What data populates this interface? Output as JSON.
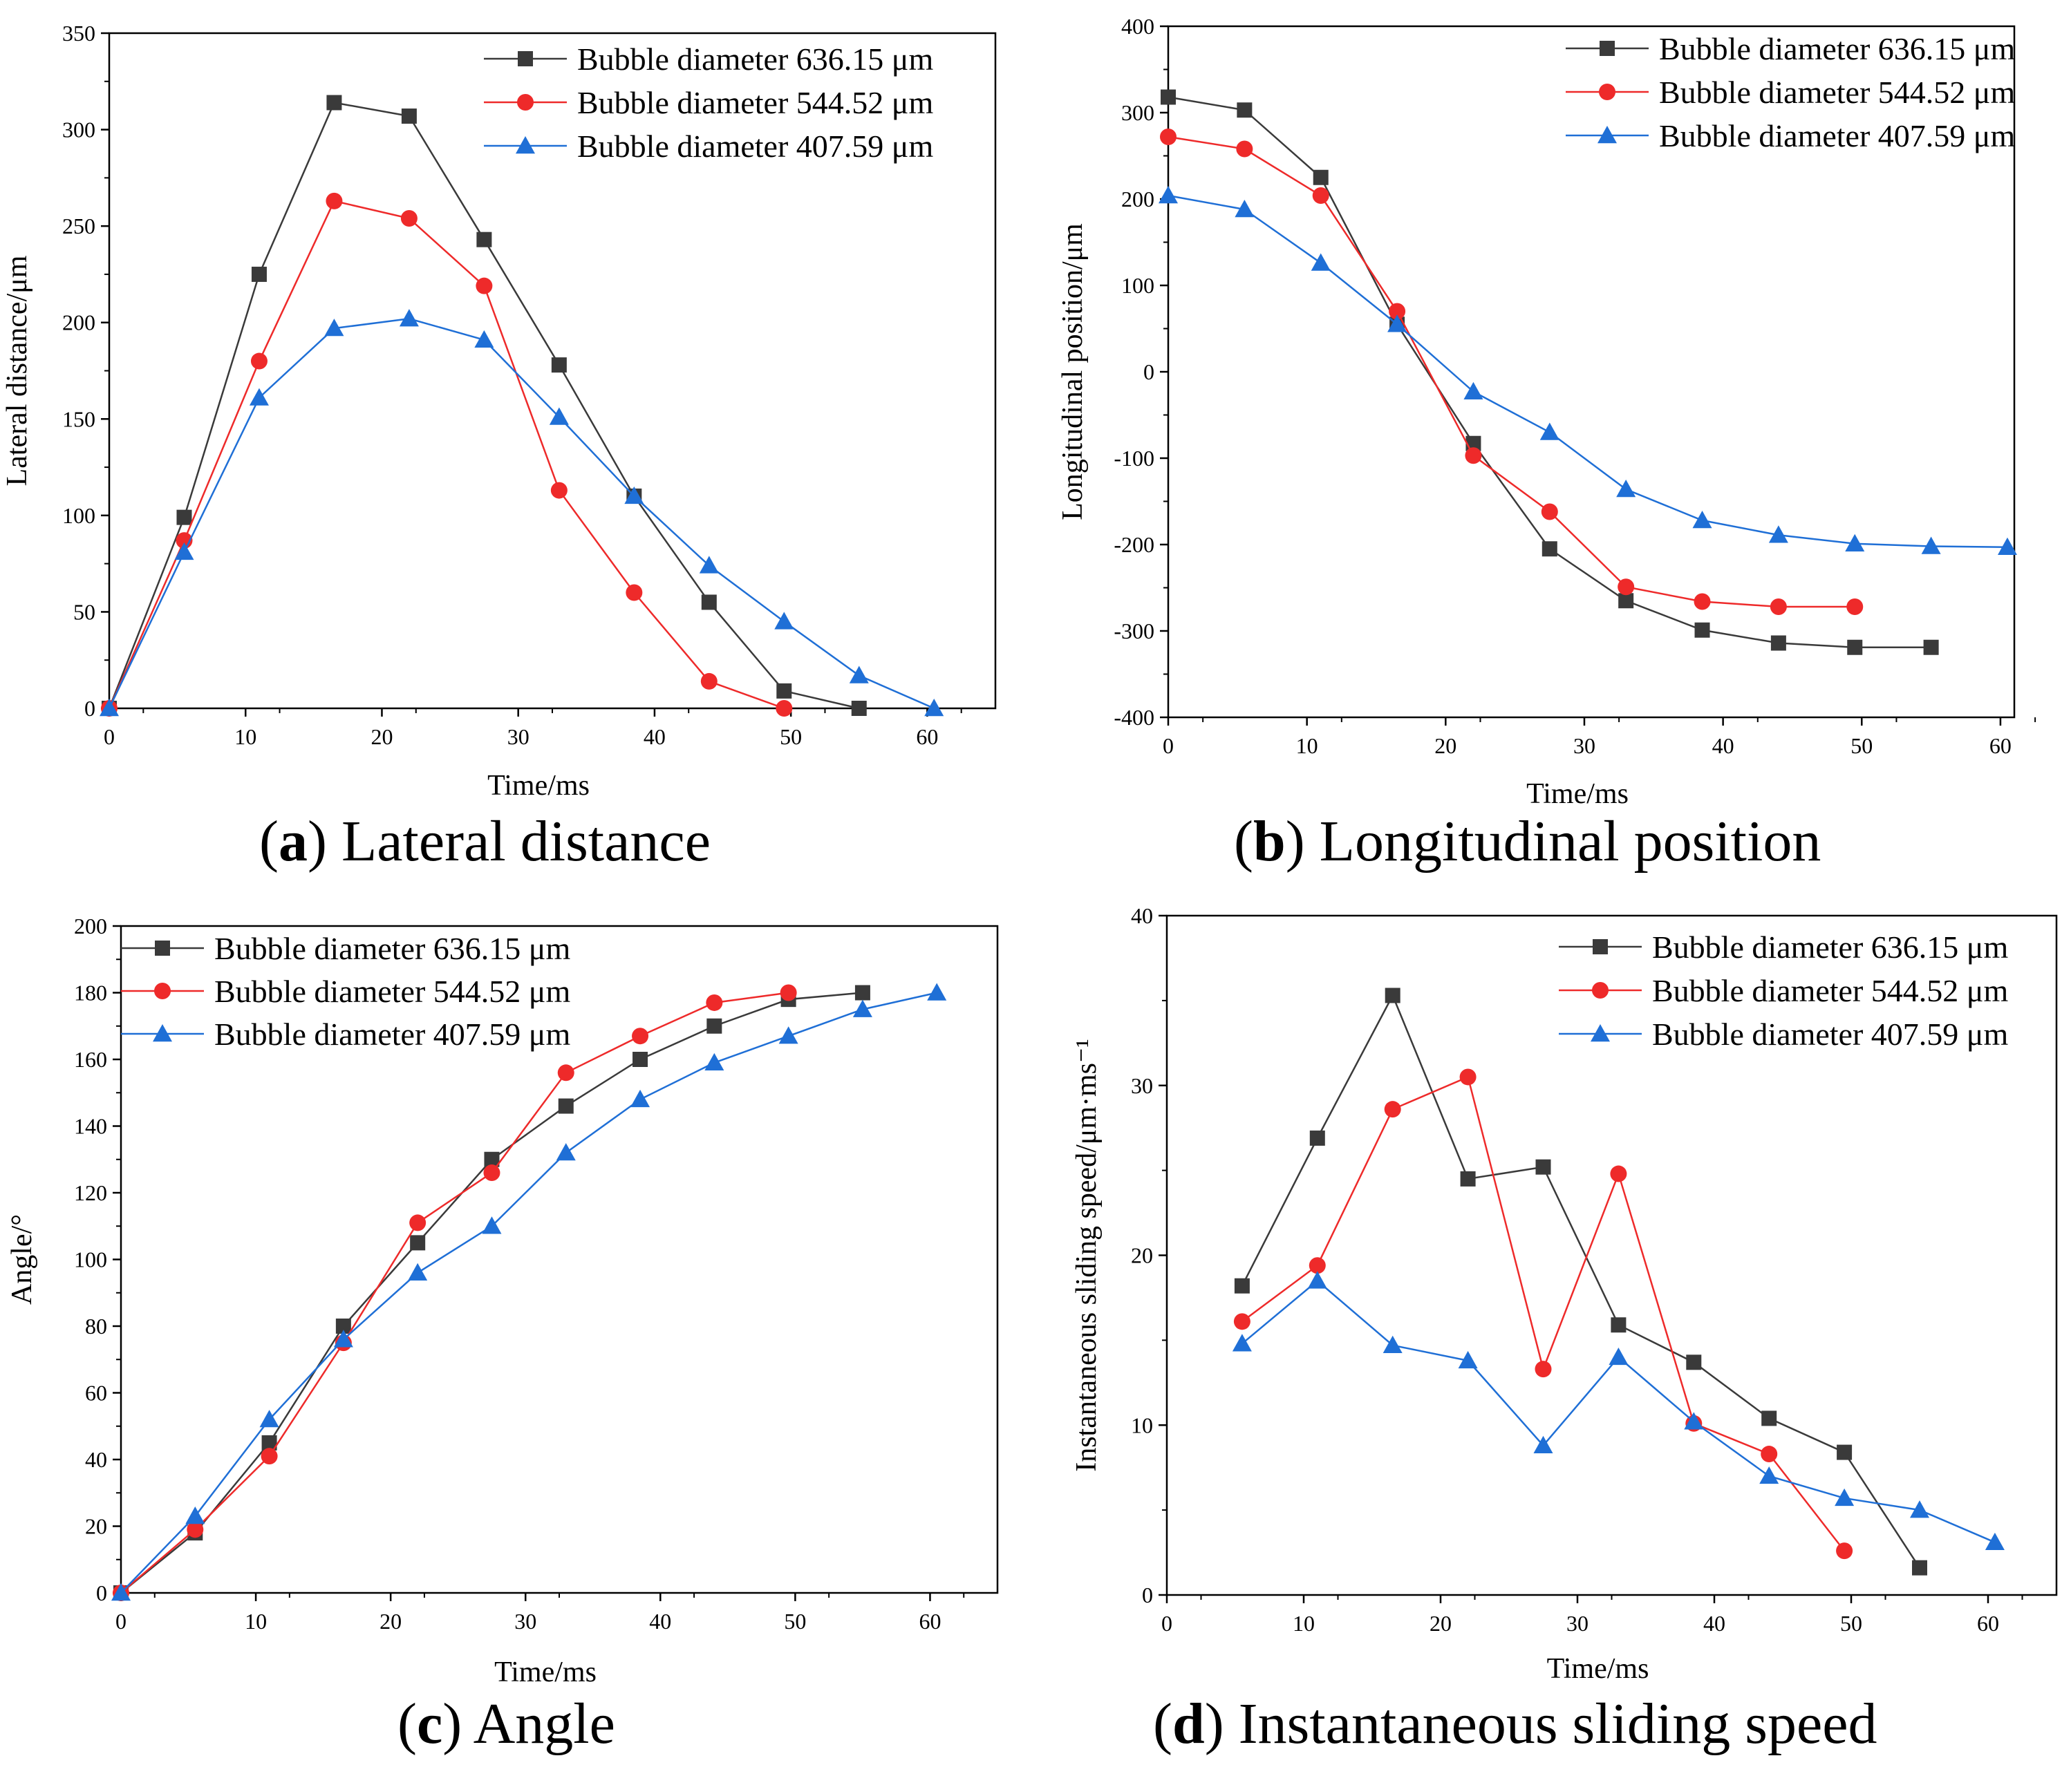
{
  "colors": {
    "s1": "#3a3a3a",
    "s2": "#ee2a2a",
    "s3": "#1f6fd6"
  },
  "series_names": [
    "Bubble diameter 636.15 μm",
    "Bubble diameter 544.52 μm",
    "Bubble diameter 407.59 μm"
  ],
  "xlabel": "Time/ms",
  "chart_data": [
    {
      "type": "line",
      "caption_letter": "a",
      "caption_text": "Lateral distance",
      "ylabel": "Lateral distance/μm",
      "xlabel": "Time/ms",
      "xlim": [
        0,
        65
      ],
      "ylim": [
        0,
        350
      ],
      "xticks": [
        0,
        10,
        20,
        30,
        40,
        50,
        60
      ],
      "yticks": [
        0,
        50,
        100,
        150,
        200,
        250,
        300,
        350
      ],
      "series": [
        {
          "name": "Bubble diameter 636.15 μm",
          "marker": "square",
          "x": [
            0,
            5.5,
            11,
            16.5,
            22,
            27.5,
            33,
            38.5,
            44,
            49.5,
            55
          ],
          "y": [
            0,
            99,
            225,
            314,
            307,
            243,
            178,
            110,
            55,
            9,
            0
          ]
        },
        {
          "name": "Bubble diameter 544.52 μm",
          "marker": "circle",
          "x": [
            0,
            5.5,
            11,
            16.5,
            22,
            27.5,
            33,
            38.5,
            44,
            49.5
          ],
          "y": [
            0,
            87,
            180,
            263,
            254,
            219,
            113,
            60,
            14,
            0
          ]
        },
        {
          "name": "Bubble diameter 407.59 μm",
          "marker": "triangle",
          "x": [
            0,
            5.5,
            11,
            16.5,
            22,
            27.5,
            33,
            38.5,
            44,
            49.5,
            55,
            60.5
          ],
          "y": [
            0,
            81,
            161,
            197,
            202,
            191,
            151,
            110,
            74,
            45,
            17,
            0
          ]
        }
      ]
    },
    {
      "type": "line",
      "caption_letter": "b",
      "caption_text": "Longitudinal position",
      "ylabel": "Longitudinal position/μm",
      "xlabel": "Time/ms",
      "xlim": [
        0,
        61
      ],
      "ylim": [
        -400,
        400
      ],
      "xticks": [
        0,
        10,
        20,
        30,
        40,
        50,
        60
      ],
      "yticks": [
        -400,
        -300,
        -200,
        -100,
        0,
        100,
        200,
        300,
        400
      ],
      "series": [
        {
          "name": "Bubble diameter 636.15 μm",
          "marker": "square",
          "x": [
            0,
            5.5,
            11,
            16.5,
            22,
            27.5,
            33,
            38.5,
            44,
            49.5,
            55
          ],
          "y": [
            318,
            303,
            225,
            55,
            -83,
            -205,
            -265,
            -299,
            -314,
            -319,
            -319
          ]
        },
        {
          "name": "Bubble diameter 544.52 μm",
          "marker": "circle",
          "x": [
            0,
            5.5,
            11,
            16.5,
            22,
            27.5,
            33,
            38.5,
            44,
            49.5
          ],
          "y": [
            272,
            258,
            204,
            70,
            -97,
            -162,
            -249,
            -266,
            -272,
            -272
          ]
        },
        {
          "name": "Bubble diameter 407.59 μm",
          "marker": "triangle",
          "x": [
            0,
            5.5,
            11,
            16.5,
            22,
            27.5,
            33,
            38.5,
            44,
            49.5,
            55,
            60.5
          ],
          "y": [
            204,
            188,
            126,
            55,
            -23,
            -70,
            -136,
            -172,
            -189,
            -199,
            -202,
            -203
          ]
        }
      ]
    },
    {
      "type": "line",
      "caption_letter": "c",
      "caption_text": "Angle",
      "ylabel": "Angle/°",
      "xlabel": "Time/ms",
      "xlim": [
        0,
        65
      ],
      "ylim": [
        0,
        200
      ],
      "xticks": [
        0,
        10,
        20,
        30,
        40,
        50,
        60
      ],
      "yticks": [
        0,
        20,
        40,
        60,
        80,
        100,
        120,
        140,
        160,
        180,
        200
      ],
      "series": [
        {
          "name": "Bubble diameter 636.15 μm",
          "marker": "square",
          "x": [
            0,
            5.5,
            11,
            16.5,
            22,
            27.5,
            33,
            38.5,
            44,
            49.5,
            55
          ],
          "y": [
            0,
            18,
            45,
            80,
            105,
            130,
            146,
            160,
            170,
            178,
            180
          ]
        },
        {
          "name": "Bubble diameter 544.52 μm",
          "marker": "circle",
          "x": [
            0,
            5.5,
            11,
            16.5,
            22,
            27.5,
            33,
            38.5,
            44,
            49.5
          ],
          "y": [
            0,
            19,
            41,
            75,
            111,
            126,
            156,
            167,
            177,
            180
          ]
        },
        {
          "name": "Bubble diameter 407.59 μm",
          "marker": "triangle",
          "x": [
            0,
            5.5,
            11,
            16.5,
            22,
            27.5,
            33,
            38.5,
            44,
            49.5,
            55,
            60.5
          ],
          "y": [
            0,
            23,
            52,
            76,
            96,
            110,
            132,
            148,
            159,
            167,
            175,
            180
          ]
        }
      ]
    },
    {
      "type": "line",
      "caption_letter": "d",
      "caption_text": "Instantaneous sliding speed",
      "ylabel": "Instantaneous sliding speed/μm·ms⁻¹",
      "xlabel": "Time/ms",
      "xlim": [
        0,
        65
      ],
      "ylim": [
        0,
        40
      ],
      "xticks": [
        0,
        10,
        20,
        30,
        40,
        50,
        60
      ],
      "yticks": [
        0,
        10,
        20,
        30,
        40
      ],
      "series": [
        {
          "name": "Bubble diameter 636.15 μm",
          "marker": "square",
          "x": [
            5.5,
            11,
            16.5,
            22,
            27.5,
            33,
            38.5,
            44,
            49.5,
            55
          ],
          "y": [
            18.2,
            26.9,
            35.3,
            24.5,
            25.2,
            15.9,
            13.7,
            10.4,
            8.4,
            1.6
          ]
        },
        {
          "name": "Bubble diameter 544.52 μm",
          "marker": "circle",
          "x": [
            5.5,
            11,
            16.5,
            22,
            27.5,
            33,
            38.5,
            44,
            49.5
          ],
          "y": [
            16.1,
            19.4,
            28.6,
            30.5,
            13.3,
            24.8,
            10.1,
            8.3,
            2.6
          ]
        },
        {
          "name": "Bubble diameter 407.59 μm",
          "marker": "triangle",
          "x": [
            5.5,
            11,
            16.5,
            22,
            27.5,
            33,
            38.5,
            44,
            49.5,
            55,
            60.5
          ],
          "y": [
            14.8,
            18.5,
            14.7,
            13.8,
            8.8,
            14.0,
            10.2,
            7.0,
            5.7,
            5.0,
            3.1
          ]
        }
      ]
    }
  ]
}
